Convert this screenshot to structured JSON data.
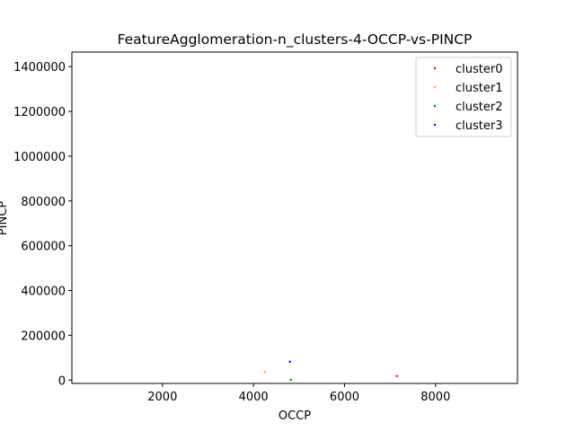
{
  "chart_data": {
    "type": "scatter",
    "title": "FeatureAgglomeration-n_clusters-4-OCCP-vs-PINCP",
    "xlabel": "OCCP",
    "ylabel": "PINCP",
    "xlim": [
      10,
      9800
    ],
    "ylim": [
      -15000,
      1465000
    ],
    "x_ticks": [
      2000,
      4000,
      6000,
      8000
    ],
    "y_ticks": [
      0,
      200000,
      400000,
      600000,
      800000,
      1000000,
      1200000,
      1400000
    ],
    "grid": false,
    "legend_position": "top-right",
    "series": [
      {
        "name": "cluster0",
        "color": "#ff0000",
        "points": [
          [
            7150,
            18000
          ]
        ]
      },
      {
        "name": "cluster1",
        "color": "#ffa500",
        "points": [
          [
            4250,
            35000
          ]
        ]
      },
      {
        "name": "cluster2",
        "color": "#008000",
        "points": [
          [
            4820,
            1000
          ]
        ]
      },
      {
        "name": "cluster3",
        "color": "#0000ff",
        "points": [
          [
            4800,
            82000
          ]
        ]
      }
    ]
  }
}
